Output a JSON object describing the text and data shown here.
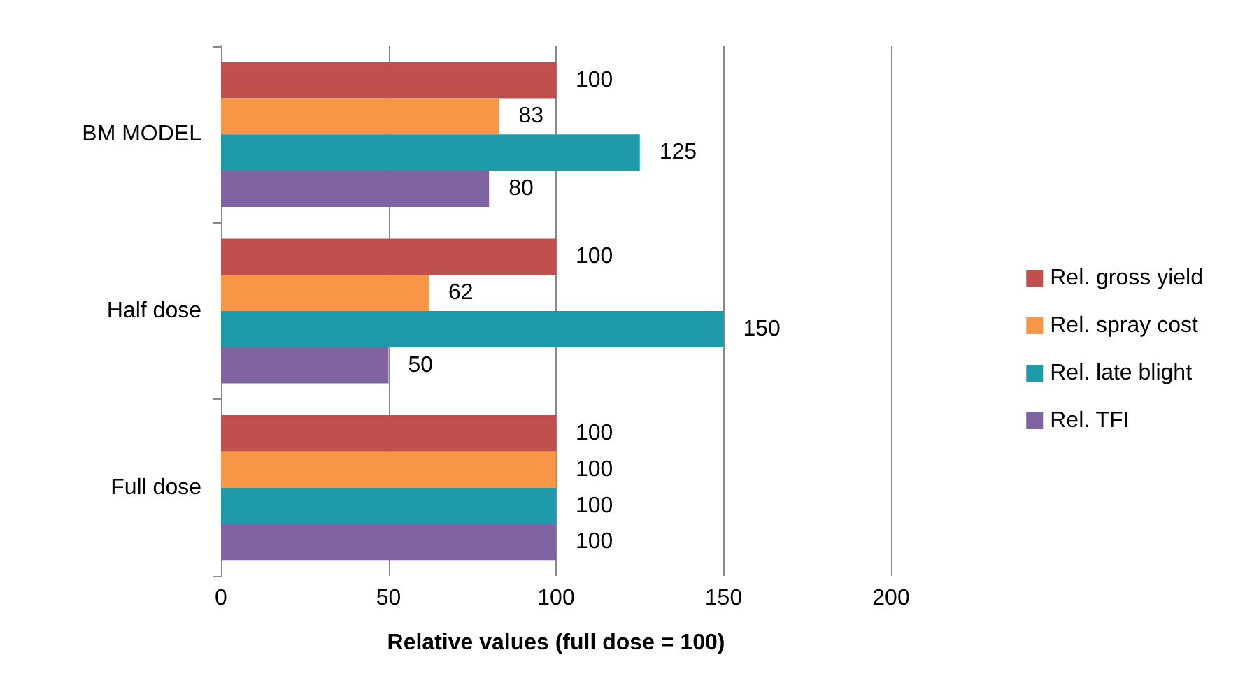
{
  "chart_data": {
    "type": "bar",
    "orientation": "horizontal",
    "xlabel": "Relative values (full dose = 100)",
    "categories": [
      "BM MODEL",
      "Half dose",
      "Full dose"
    ],
    "series": [
      {
        "name": "Rel. gross yield",
        "color": "#c0504d",
        "values": [
          100,
          100,
          100
        ]
      },
      {
        "name": "Rel. spray cost",
        "color": "#f79646",
        "values": [
          83,
          62,
          100
        ]
      },
      {
        "name": "Rel. late blight",
        "color": "#1f9aab",
        "values": [
          125,
          150,
          100
        ]
      },
      {
        "name": "Rel. TFI",
        "color": "#8064a2",
        "values": [
          80,
          50,
          100
        ]
      }
    ],
    "xlim": [
      0,
      200
    ],
    "xticks": [
      0,
      50,
      100,
      150,
      200
    ],
    "grid": "x",
    "legend": "right",
    "data_labels": true
  }
}
